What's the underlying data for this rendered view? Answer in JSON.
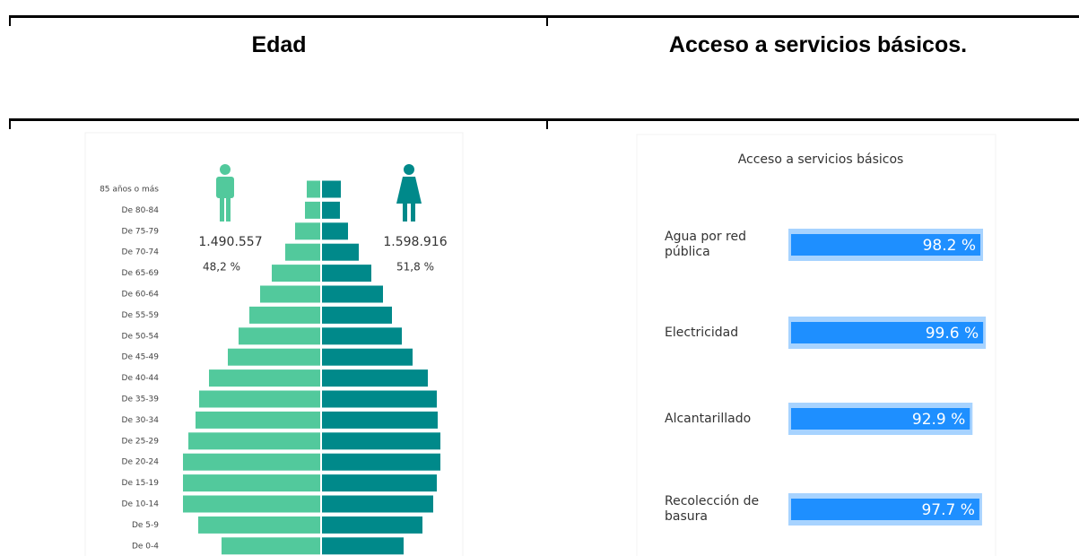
{
  "header": {
    "columns": [
      "Edad",
      "Acceso a servicios básicos."
    ]
  },
  "charts": {
    "chart_data": [
      {
        "type": "pyramid",
        "categories": [
          "85 años o más",
          "De 80-84",
          "De 75-79",
          "De 70-74",
          "De 65-69",
          "De 60-64",
          "De 55-59",
          "De 50-54",
          "De 45-49",
          "De 40-44",
          "De 35-39",
          "De 30-34",
          "De 25-29",
          "De 20-24",
          "De 15-19",
          "De 10-14",
          "De 5-9",
          "De 0-4"
        ],
        "series": [
          {
            "name": "1.490.557",
            "share": "48,2 %",
            "color": "#52c99c",
            "values": [
              15,
              17,
              28,
              39,
              54,
              67,
              79,
              91,
              103,
              124,
              135,
              139,
              147,
              153,
              153,
              153,
              136,
              110
            ]
          },
          {
            "name": "1.598.916",
            "share": "51,8 %",
            "color": "#00898a",
            "values": [
              21,
              20,
              29,
              41,
              55,
              68,
              78,
              89,
              101,
              118,
              128,
              129,
              132,
              132,
              128,
              124,
              112,
              91
            ]
          }
        ],
        "xlim": [
          0,
          160
        ]
      },
      {
        "type": "hbar",
        "title": "Acceso a servicios básicos",
        "categories": [
          "Agua por red pública",
          "Electricidad",
          "Alcantarillado",
          "Recolección de basura"
        ],
        "values": [
          98.2,
          99.6,
          92.9,
          97.7
        ],
        "value_labels": [
          "98.2 %",
          "99.6 %",
          "92.9 %",
          "97.7 %"
        ],
        "color": "#1e8fff",
        "track_color": "#a7d3ff",
        "xlim": [
          0,
          100
        ]
      }
    ]
  }
}
